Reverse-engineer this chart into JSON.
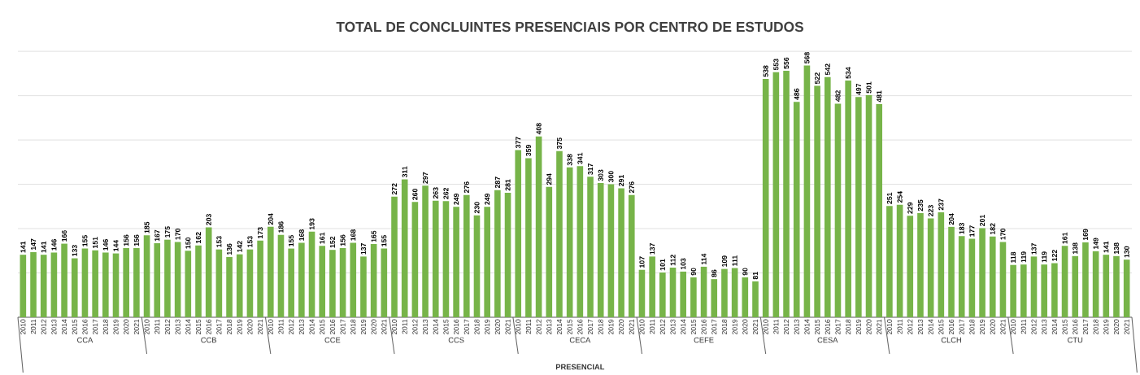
{
  "chart_data": {
    "type": "bar",
    "title": "TOTAL DE CONCLUINTES PRESENCIAIS POR CENTRO DE ESTUDOS",
    "categories": [
      "2010",
      "2011",
      "2012",
      "2013",
      "2014",
      "2015",
      "2016",
      "2017",
      "2018",
      "2019",
      "2020",
      "2021",
      "2010",
      "2011",
      "2012",
      "2013",
      "2014",
      "2015",
      "2016",
      "2017",
      "2018",
      "2019",
      "2020",
      "2021",
      "2010",
      "2011",
      "2012",
      "2013",
      "2014",
      "2015",
      "2016",
      "2017",
      "2018",
      "2019",
      "2020",
      "2021",
      "2010",
      "2011",
      "2012",
      "2013",
      "2014",
      "2015",
      "2016",
      "2017",
      "2018",
      "2019",
      "2020",
      "2021",
      "2010",
      "2011",
      "2012",
      "2013",
      "2014",
      "2015",
      "2016",
      "2017",
      "2018",
      "2019",
      "2020",
      "2021",
      "2010",
      "2011",
      "2012",
      "2013",
      "2014",
      "2015",
      "2016",
      "2017",
      "2018",
      "2019",
      "2020",
      "2021",
      "2010",
      "2011",
      "2012",
      "2013",
      "2014",
      "2015",
      "2016",
      "2017",
      "2018",
      "2019",
      "2020",
      "2021",
      "2010",
      "2011",
      "2012",
      "2013",
      "2014",
      "2015",
      "2016",
      "2017",
      "2018",
      "2019",
      "2020",
      "2021",
      "2010",
      "2011",
      "2012",
      "2013",
      "2014",
      "2015",
      "2016",
      "2017",
      "2018",
      "2019",
      "2020",
      "2021"
    ],
    "values": [
      141,
      147,
      141,
      146,
      166,
      133,
      155,
      151,
      146,
      144,
      156,
      156,
      185,
      167,
      175,
      170,
      150,
      162,
      203,
      153,
      136,
      142,
      153,
      173,
      204,
      186,
      155,
      168,
      193,
      161,
      152,
      156,
      168,
      137,
      165,
      155,
      272,
      311,
      260,
      297,
      263,
      262,
      249,
      276,
      230,
      249,
      287,
      281,
      377,
      359,
      408,
      294,
      375,
      338,
      341,
      317,
      303,
      300,
      291,
      276,
      107,
      137,
      101,
      112,
      103,
      90,
      114,
      86,
      109,
      111,
      90,
      81,
      538,
      553,
      556,
      486,
      568,
      522,
      542,
      482,
      534,
      497,
      501,
      481,
      251,
      254,
      229,
      235,
      223,
      237,
      204,
      183,
      177,
      201,
      182,
      170,
      118,
      119,
      137,
      119,
      122,
      161,
      138,
      169,
      149,
      141,
      138,
      130
    ],
    "color": "#77b449",
    "grid": "y",
    "tick_labels": "x",
    "data_labels": true,
    "annotations": [
      "CCA",
      "CCB",
      "CCE",
      "CCS",
      "CECA",
      "CEFE",
      "CESA",
      "CLCH",
      "CTU",
      "PRESENCIAL"
    ]
  }
}
